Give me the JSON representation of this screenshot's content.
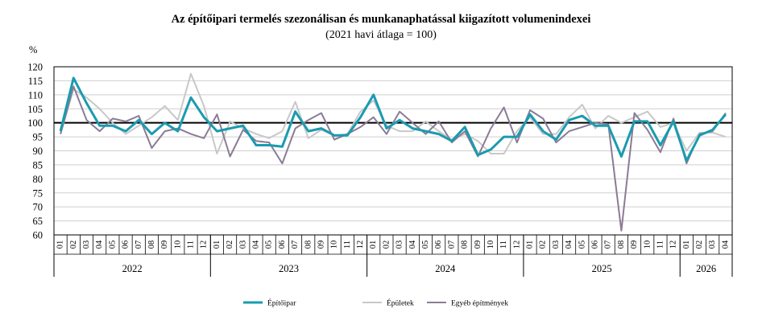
{
  "header": {
    "title": "Az építőipari termelés szezonálisan és munkanaphatással kiigazított volumenindexei",
    "subtitle": "(2021 havi átlaga = 100)"
  },
  "chart_data": {
    "type": "line",
    "title": "Az építőipari termelés szezonálisan és munkanaphatással kiigazított volumenindexei",
    "subtitle": "(2021 havi átlaga = 100)",
    "ylabel": "%",
    "ylim": [
      60,
      120
    ],
    "yticks": [
      60,
      65,
      70,
      75,
      80,
      85,
      90,
      95,
      100,
      105,
      110,
      115,
      120
    ],
    "reference_line": 100,
    "grid": "horizontal",
    "legend_position": "bottom",
    "years": [
      {
        "label": "2022",
        "months": 12
      },
      {
        "label": "2023",
        "months": 12
      },
      {
        "label": "2024",
        "months": 12
      },
      {
        "label": "2025",
        "months": 12
      },
      {
        "label": "2026",
        "months": 4
      }
    ],
    "x": [
      "01",
      "02",
      "03",
      "04",
      "05",
      "06",
      "07",
      "08",
      "09",
      "10",
      "11",
      "12",
      "01",
      "02",
      "03",
      "04",
      "05",
      "06",
      "07",
      "08",
      "09",
      "10",
      "11",
      "12",
      "01",
      "02",
      "03",
      "04",
      "05",
      "06",
      "07",
      "08",
      "09",
      "10",
      "11",
      "12",
      "01",
      "02",
      "03",
      "04",
      "05",
      "06",
      "07",
      "08",
      "09",
      "10",
      "11",
      "12",
      "01",
      "02",
      "03",
      "04"
    ],
    "series": [
      {
        "name": "Építőipar",
        "color": "#1a9bb0",
        "width": 3,
        "values": [
          97,
          116,
          107,
          99,
          99,
          97,
          101,
          96,
          100,
          97,
          109,
          102,
          97,
          98,
          99,
          92,
          92,
          91.5,
          104,
          97,
          98,
          95.5,
          95.5,
          102,
          110,
          98,
          101,
          98,
          97,
          96,
          93.5,
          98.5,
          88.5,
          90.5,
          95,
          95,
          103,
          97,
          94,
          101,
          102.5,
          99,
          99,
          88,
          100.5,
          100.5,
          92,
          100.5,
          86.5,
          95.5,
          97.5,
          103
        ]
      },
      {
        "name": "Épületek",
        "color": "#c8c8c8",
        "width": 2,
        "values": [
          96,
          112,
          109,
          105,
          100,
          96,
          99,
          102,
          106,
          101,
          117.5,
          106,
          89,
          100.5,
          98,
          96,
          94.5,
          97,
          107.5,
          94.5,
          97.5,
          95.5,
          96,
          104,
          108,
          99,
          97,
          97,
          100.5,
          97,
          94,
          96,
          93.5,
          89,
          89,
          97,
          102,
          96,
          96,
          102,
          106.5,
          98,
          102.5,
          100,
          102,
          104,
          98.5,
          100,
          90,
          96.5,
          96.5,
          95
        ]
      },
      {
        "name": "Egyéb építmények",
        "color": "#8b7b96",
        "width": 2,
        "values": [
          96,
          113,
          101,
          97,
          101.5,
          100.5,
          102.5,
          91,
          97,
          98,
          96,
          94.5,
          103,
          88,
          97.5,
          93.5,
          93,
          85.5,
          98,
          101,
          103.5,
          94,
          96,
          98.5,
          102,
          96,
          104,
          100,
          96,
          100.5,
          93,
          97,
          88,
          98,
          105.5,
          93,
          104.5,
          101.5,
          93,
          97,
          98.5,
          100,
          99.5,
          61.5,
          103.5,
          97.5,
          89.5,
          101.5,
          85.5,
          96,
          97,
          103.5
        ]
      }
    ]
  },
  "legend": {
    "items": [
      {
        "label": "Építőipar",
        "color": "#1a9bb0"
      },
      {
        "label": "Épületek",
        "color": "#c8c8c8"
      },
      {
        "label": "Egyéb építmények",
        "color": "#8b7b96"
      }
    ]
  }
}
